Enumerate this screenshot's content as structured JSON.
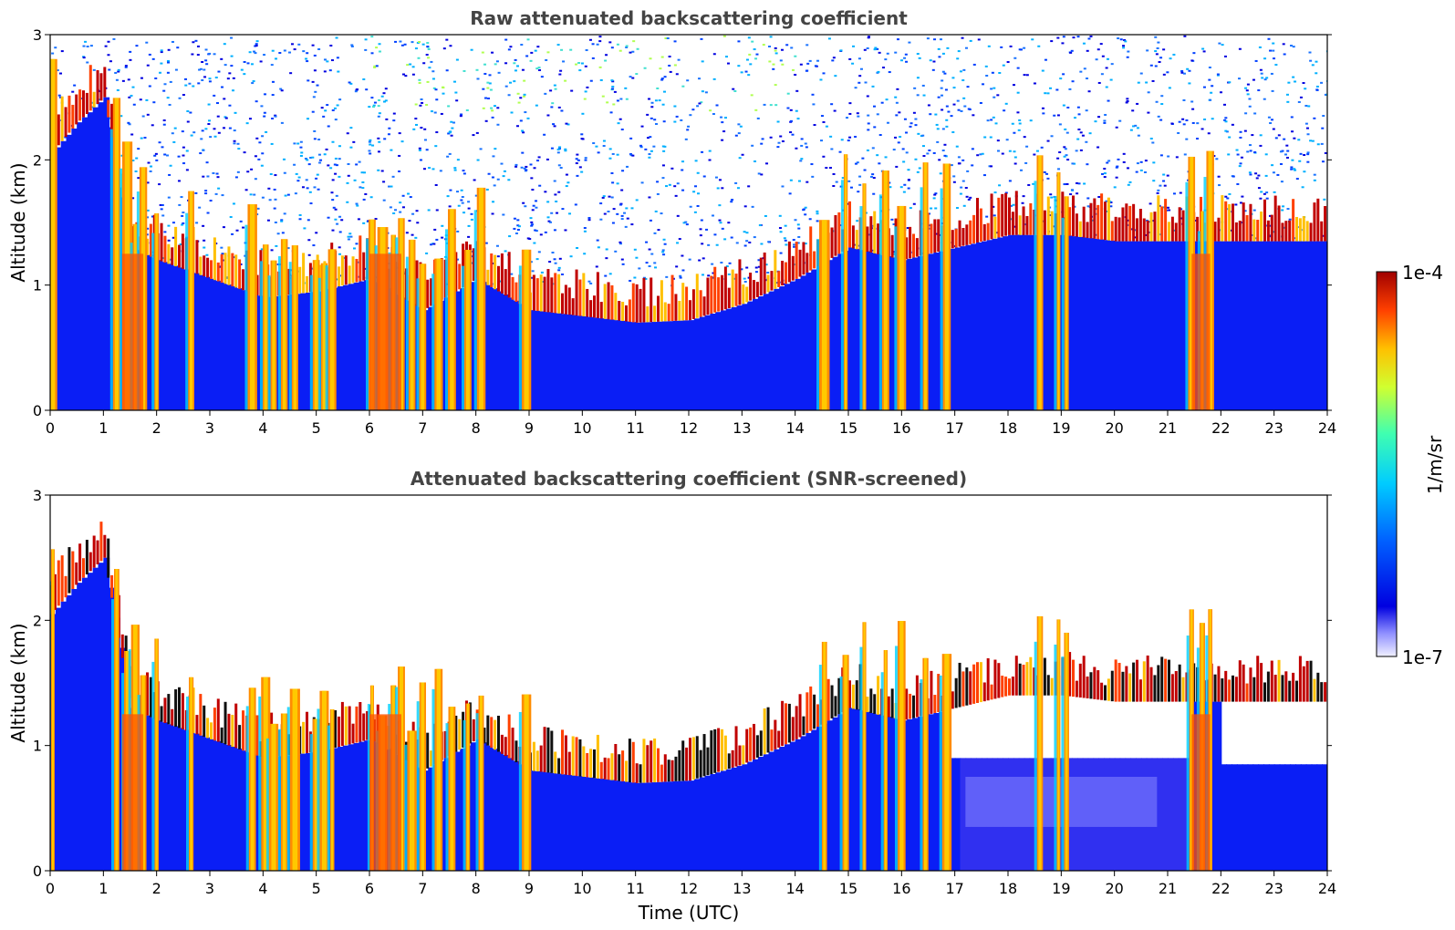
{
  "chart_data": [
    {
      "type": "heatmap",
      "title": "Raw attenuated backscattering coefficient",
      "xlabel": "",
      "ylabel": "Altitude (km)",
      "xlim": [
        0,
        24
      ],
      "ylim": [
        0,
        3
      ],
      "x_ticks": [
        "0",
        "1",
        "2",
        "3",
        "4",
        "5",
        "6",
        "7",
        "8",
        "9",
        "10",
        "11",
        "12",
        "13",
        "14",
        "15",
        "16",
        "17",
        "18",
        "19",
        "20",
        "21",
        "22",
        "23",
        "24"
      ],
      "y_ticks": [
        "0",
        "1",
        "2",
        "3"
      ],
      "cloud_base_km": [
        {
          "t": 0.0,
          "alt": 2.05
        },
        {
          "t": 0.5,
          "alt": 2.3
        },
        {
          "t": 1.0,
          "alt": 2.5
        },
        {
          "t": 1.5,
          "alt": 1.3
        },
        {
          "t": 2.0,
          "alt": 1.2
        },
        {
          "t": 3.0,
          "alt": 1.05
        },
        {
          "t": 4.0,
          "alt": 0.9
        },
        {
          "t": 5.0,
          "alt": 0.95
        },
        {
          "t": 6.0,
          "alt": 1.05
        },
        {
          "t": 7.0,
          "alt": 0.8
        },
        {
          "t": 8.0,
          "alt": 1.05
        },
        {
          "t": 9.0,
          "alt": 0.8
        },
        {
          "t": 10.0,
          "alt": 0.75
        },
        {
          "t": 11.0,
          "alt": 0.7
        },
        {
          "t": 12.0,
          "alt": 0.72
        },
        {
          "t": 13.0,
          "alt": 0.85
        },
        {
          "t": 14.0,
          "alt": 1.05
        },
        {
          "t": 15.0,
          "alt": 1.3
        },
        {
          "t": 16.0,
          "alt": 1.2
        },
        {
          "t": 17.0,
          "alt": 1.3
        },
        {
          "t": 18.0,
          "alt": 1.4
        },
        {
          "t": 19.0,
          "alt": 1.4
        },
        {
          "t": 20.0,
          "alt": 1.35
        },
        {
          "t": 21.0,
          "alt": 1.35
        },
        {
          "t": 22.0,
          "alt": 1.35
        },
        {
          "t": 23.0,
          "alt": 1.35
        },
        {
          "t": 24.0,
          "alt": 1.35
        }
      ],
      "precipitation_hours": [
        0.05,
        1.25,
        1.45,
        1.6,
        1.75,
        2.0,
        2.65,
        3.8,
        4.05,
        4.2,
        4.4,
        4.6,
        5.0,
        5.15,
        5.3,
        6.05,
        6.25,
        6.45,
        6.6,
        6.8,
        7.0,
        7.3,
        7.55,
        7.85,
        8.1,
        8.95,
        14.55,
        14.95,
        15.3,
        15.7,
        16.0,
        16.45,
        16.85,
        18.6,
        18.95,
        19.1,
        21.45,
        21.65,
        21.8
      ]
    },
    {
      "type": "heatmap",
      "title": "Attenuated backscattering coefficient (SNR-screened)",
      "xlabel": "Time (UTC)",
      "ylabel": "Altitude (km)",
      "xlim": [
        0,
        24
      ],
      "ylim": [
        0,
        3
      ],
      "x_ticks": [
        "0",
        "1",
        "2",
        "3",
        "4",
        "5",
        "6",
        "7",
        "8",
        "9",
        "10",
        "11",
        "12",
        "13",
        "14",
        "15",
        "16",
        "17",
        "18",
        "19",
        "20",
        "21",
        "22",
        "23",
        "24"
      ],
      "y_ticks": [
        "0",
        "1",
        "2",
        "3"
      ]
    }
  ],
  "colorbar": {
    "label": "1/m/sr",
    "max_label": "1e-4",
    "min_label": "1e-7",
    "scale": "log",
    "range": [
      1e-07,
      0.0001
    ],
    "colormap": "jet",
    "colors": [
      "#f0f0ff",
      "#0000e0",
      "#0060ff",
      "#00ccff",
      "#40ffb0",
      "#d0ff30",
      "#ffc000",
      "#ff4000",
      "#a00000"
    ]
  }
}
